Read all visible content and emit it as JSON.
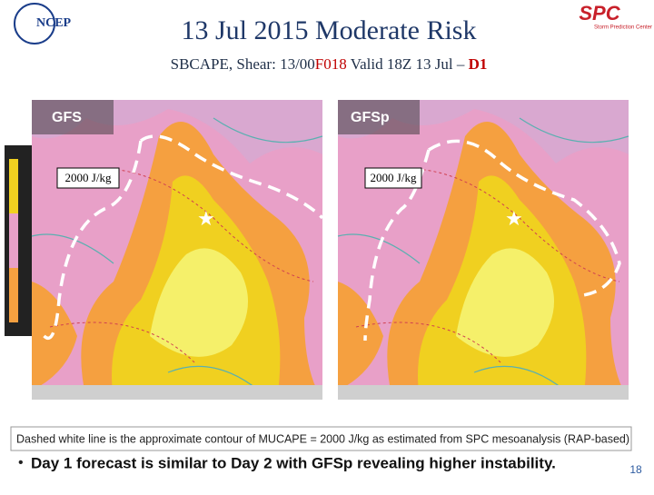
{
  "header": {
    "logo_left": "NCEP",
    "logo_right": "SPC",
    "logo_right_sub": "Storm Prediction Center",
    "title": "13 Jul 2015 Moderate Risk",
    "subtitle": {
      "part1": "SBCAPE, Shear: 13/00",
      "part2": "F018",
      "part3": " Valid 18Z 13 Jul – ",
      "part4": "D1"
    }
  },
  "panels": [
    {
      "label": "GFS",
      "annotation": "2000 J/kg"
    },
    {
      "label": "GFSp",
      "annotation": "2000 J/kg"
    }
  ],
  "caption": "Dashed white line is the approximate contour of MUCAPE = 2000 J/kg as estimated from SPC mesoanalysis (RAP-based)",
  "bullet": "Day 1 forecast is similar to Day 2 with GFSp revealing higher instability.",
  "page_number": "18"
}
